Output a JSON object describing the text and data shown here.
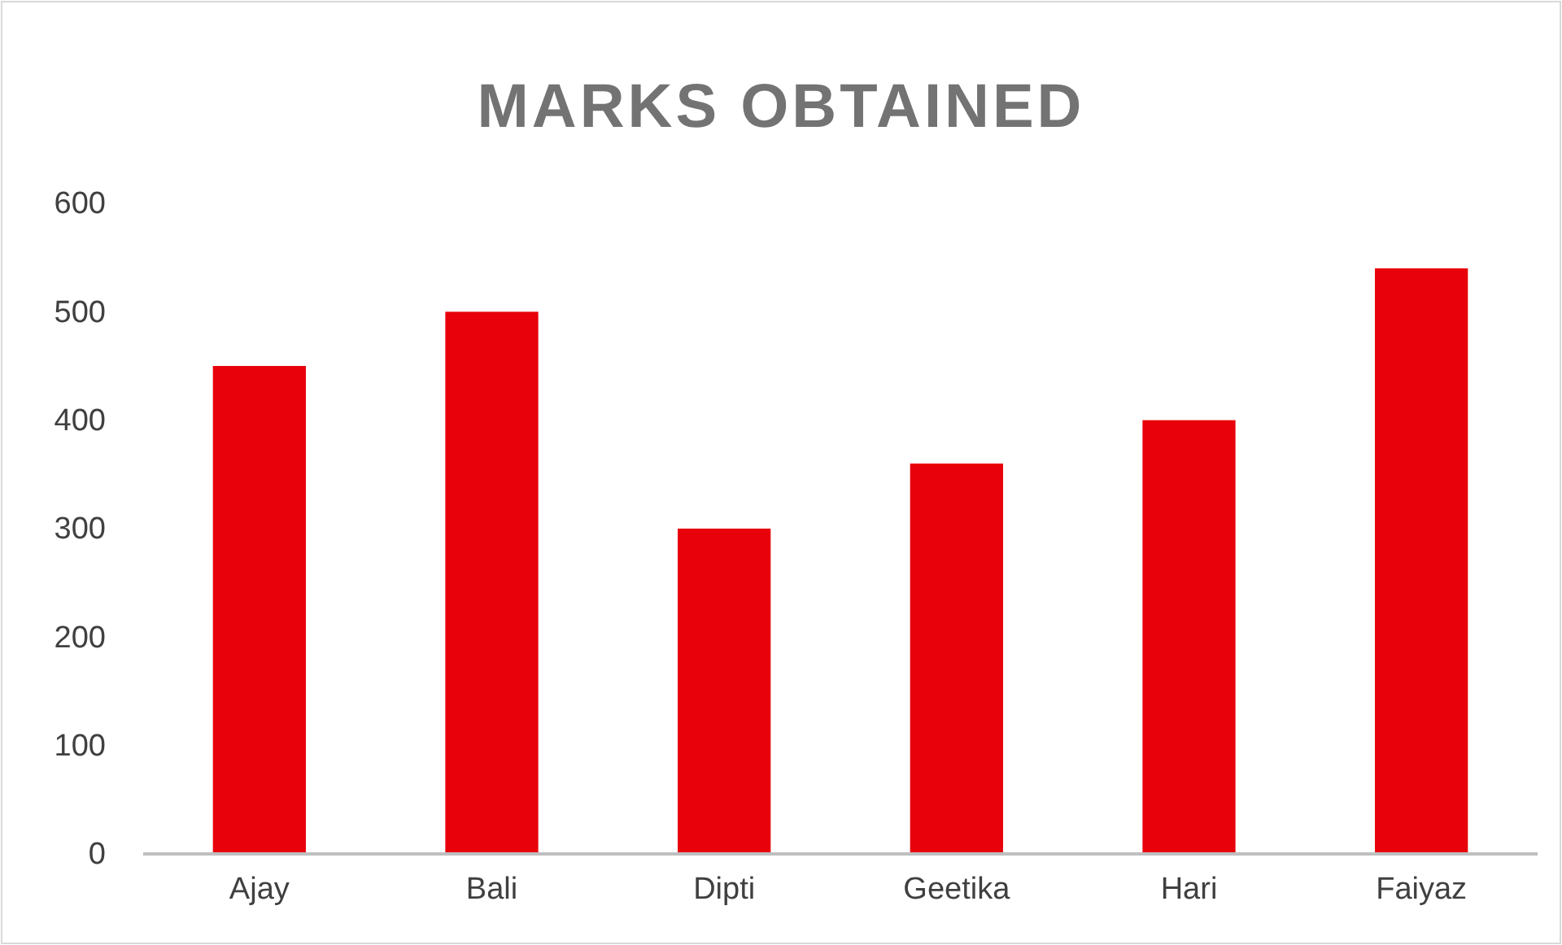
{
  "chart_data": {
    "type": "bar",
    "title": "MARKS OBTAINED",
    "categories": [
      "Ajay",
      "Bali",
      "Dipti",
      "Geetika",
      "Hari",
      "Faiyaz"
    ],
    "values": [
      450,
      500,
      300,
      360,
      400,
      540
    ],
    "color": "#e8000b",
    "ylim": [
      0,
      600
    ],
    "yticks": [
      0,
      100,
      200,
      300,
      400,
      500,
      600
    ],
    "grid": false
  }
}
